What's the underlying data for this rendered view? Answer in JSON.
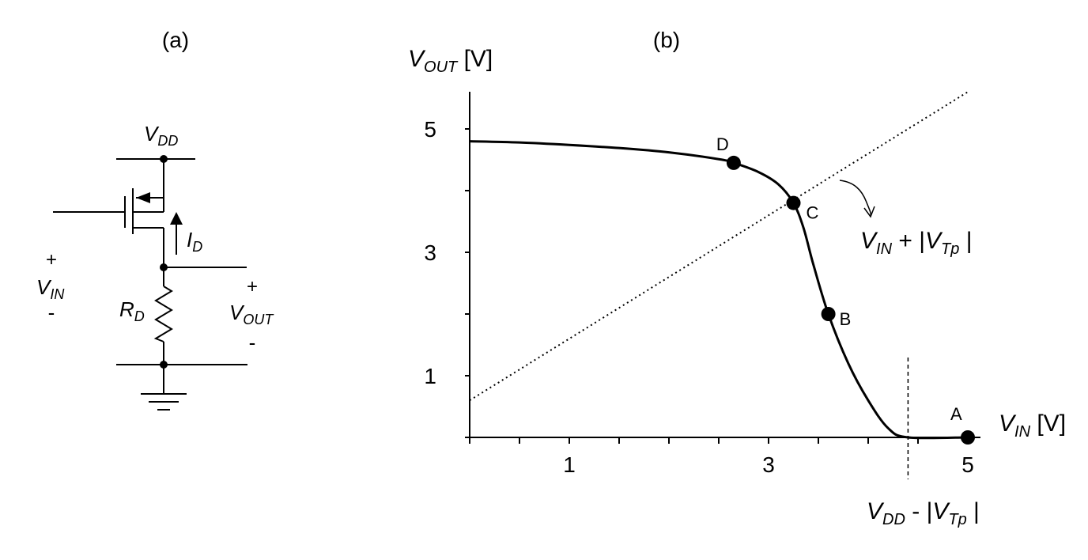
{
  "panel_a": {
    "title": "(a)",
    "vdd": {
      "main": "V",
      "sub": "DD"
    },
    "id": {
      "main": "I",
      "sub": "D"
    },
    "rd": {
      "main": "R",
      "sub": "D"
    },
    "vin": {
      "plus": "+",
      "main": "V",
      "sub": "IN",
      "minus": "-"
    },
    "vout": {
      "plus": "+",
      "main": "V",
      "sub": "OUT",
      "minus": "-"
    }
  },
  "panel_b": {
    "title": "(b)",
    "y_axis_label": {
      "main": "V",
      "sub": "OUT",
      "unit": " [V]"
    },
    "x_axis_label": {
      "main": "V",
      "sub": "IN",
      "unit": " [V]"
    },
    "y_ticks": [
      "1",
      "3",
      "5"
    ],
    "x_ticks": [
      "1",
      "3",
      "5"
    ],
    "points": [
      {
        "label": "A",
        "vin": 5.0,
        "vout": 0.0
      },
      {
        "label": "B",
        "vin": 3.6,
        "vout": 2.0
      },
      {
        "label": "C",
        "vin": 3.25,
        "vout": 3.8
      },
      {
        "label": "D",
        "vin": 2.65,
        "vout": 4.45
      }
    ],
    "diag_label": {
      "v1": "V",
      "sub1": "IN",
      "mid": " + |",
      "v2": "V",
      "sub2": "Tp",
      "end": " |"
    },
    "vert_label": {
      "v1": "V",
      "sub1": "DD",
      "mid": " - |",
      "v2": "V",
      "sub2": "Tp",
      "end": " |"
    },
    "vert_line_vin": 4.4,
    "diag_offset": 0.6
  },
  "chart_data": {
    "type": "line",
    "title": "(b)",
    "xlabel": "VIN [V]",
    "ylabel": "VOUT [V]",
    "xlim": [
      0,
      5
    ],
    "ylim": [
      0,
      5.5
    ],
    "series": [
      {
        "name": "",
        "x": [
          0,
          0.5,
          1.0,
          1.5,
          2.0,
          2.5,
          2.65,
          2.9,
          3.1,
          3.25,
          3.35,
          3.45,
          3.6,
          3.8,
          4.0,
          4.2,
          4.4,
          5.0
        ],
        "y": [
          4.8,
          4.78,
          4.74,
          4.69,
          4.62,
          4.51,
          4.45,
          4.3,
          4.1,
          3.8,
          3.4,
          2.8,
          2.0,
          1.2,
          0.6,
          0.15,
          0.0,
          0.0
        ]
      },
      {
        "name": "VIN + |VTp|",
        "x": [
          0,
          5
        ],
        "y": [
          0.6,
          5.6
        ]
      }
    ]
  }
}
